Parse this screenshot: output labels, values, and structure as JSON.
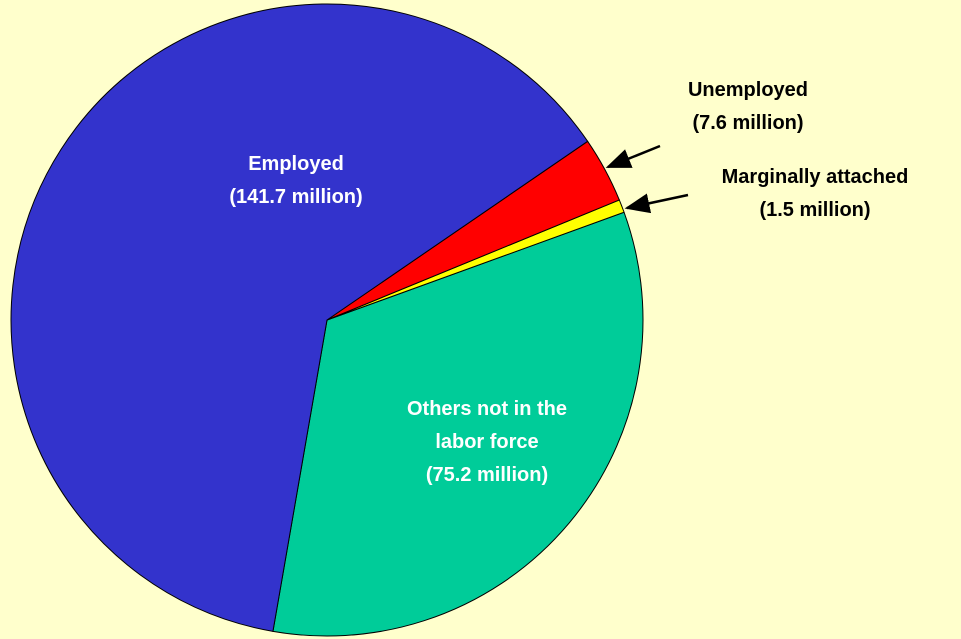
{
  "chart_data": {
    "type": "pie",
    "categories": [
      "Employed",
      "Unemployed",
      "Marginally attached",
      "Others not in the labor force"
    ],
    "values": [
      141.7,
      7.6,
      1.5,
      75.2
    ],
    "value_labels": [
      "(141.7 million)",
      "(7.6 million)",
      "(1.5 million)",
      "(75.2 million)"
    ],
    "colors": [
      "#3333cc",
      "#ff0000",
      "#ffff00",
      "#00cc99"
    ]
  }
}
